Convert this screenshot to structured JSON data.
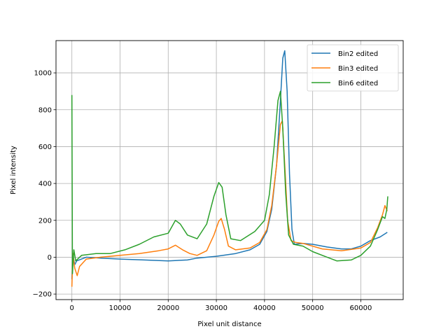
{
  "chart_data": {
    "type": "line",
    "title": "",
    "xlabel": "Pixel unit distance",
    "ylabel": "Pixel intensity",
    "xlim": [
      -3300,
      68800
    ],
    "ylim": [
      -230,
      1175
    ],
    "x_ticks": [
      0,
      10000,
      20000,
      30000,
      40000,
      50000,
      60000
    ],
    "x_tick_labels": [
      "0",
      "10000",
      "20000",
      "30000",
      "40000",
      "50000",
      "60000"
    ],
    "y_ticks": [
      -200,
      0,
      200,
      400,
      600,
      800,
      1000
    ],
    "y_tick_labels": [
      "−200",
      "0",
      "200",
      "400",
      "600",
      "800",
      "1000"
    ],
    "grid": true,
    "legend_position": "top-right",
    "series": [
      {
        "name": "Bin2 edited",
        "color": "#1f77b4",
        "points": [
          [
            0,
            -120
          ],
          [
            200,
            10
          ],
          [
            600,
            -40
          ],
          [
            1000,
            -20
          ],
          [
            3000,
            0
          ],
          [
            6000,
            -5
          ],
          [
            10000,
            -10
          ],
          [
            15000,
            -15
          ],
          [
            20000,
            -20
          ],
          [
            24000,
            -15
          ],
          [
            26000,
            -5
          ],
          [
            30000,
            5
          ],
          [
            34000,
            20
          ],
          [
            37000,
            40
          ],
          [
            39000,
            70
          ],
          [
            40500,
            140
          ],
          [
            41500,
            260
          ],
          [
            42500,
            500
          ],
          [
            43300,
            850
          ],
          [
            43800,
            1080
          ],
          [
            44200,
            1120
          ],
          [
            44700,
            900
          ],
          [
            45200,
            450
          ],
          [
            45700,
            150
          ],
          [
            46200,
            70
          ],
          [
            48000,
            75
          ],
          [
            50000,
            70
          ],
          [
            53000,
            55
          ],
          [
            56000,
            45
          ],
          [
            58000,
            45
          ],
          [
            60000,
            60
          ],
          [
            62000,
            90
          ],
          [
            64000,
            110
          ],
          [
            65500,
            135
          ]
        ]
      },
      {
        "name": "Bin3 edited",
        "color": "#ff7f0e",
        "points": [
          [
            0,
            -160
          ],
          [
            200,
            20
          ],
          [
            600,
            -60
          ],
          [
            1100,
            -100
          ],
          [
            1600,
            -50
          ],
          [
            3000,
            -10
          ],
          [
            6000,
            0
          ],
          [
            10000,
            10
          ],
          [
            14000,
            20
          ],
          [
            18000,
            35
          ],
          [
            20000,
            45
          ],
          [
            21500,
            65
          ],
          [
            23000,
            40
          ],
          [
            24500,
            20
          ],
          [
            26000,
            10
          ],
          [
            28000,
            35
          ],
          [
            29500,
            120
          ],
          [
            30500,
            195
          ],
          [
            31000,
            210
          ],
          [
            31700,
            150
          ],
          [
            32500,
            60
          ],
          [
            34000,
            40
          ],
          [
            37000,
            50
          ],
          [
            39000,
            80
          ],
          [
            40500,
            150
          ],
          [
            41500,
            280
          ],
          [
            42500,
            500
          ],
          [
            43300,
            720
          ],
          [
            43700,
            740
          ],
          [
            44200,
            500
          ],
          [
            44800,
            200
          ],
          [
            45500,
            90
          ],
          [
            46500,
            80
          ],
          [
            48000,
            75
          ],
          [
            52000,
            45
          ],
          [
            56000,
            35
          ],
          [
            60000,
            50
          ],
          [
            62000,
            80
          ],
          [
            63500,
            160
          ],
          [
            64500,
            230
          ],
          [
            65000,
            280
          ],
          [
            65500,
            250
          ]
        ]
      },
      {
        "name": "Bin6 edited",
        "color": "#2ca02c",
        "points": [
          [
            0,
            880
          ],
          [
            120,
            -90
          ],
          [
            400,
            40
          ],
          [
            800,
            -20
          ],
          [
            2000,
            10
          ],
          [
            5000,
            20
          ],
          [
            8000,
            20
          ],
          [
            11000,
            40
          ],
          [
            14000,
            70
          ],
          [
            17000,
            110
          ],
          [
            20000,
            130
          ],
          [
            21500,
            200
          ],
          [
            22500,
            180
          ],
          [
            24000,
            120
          ],
          [
            26000,
            100
          ],
          [
            28000,
            180
          ],
          [
            29500,
            330
          ],
          [
            30500,
            405
          ],
          [
            31200,
            380
          ],
          [
            32000,
            230
          ],
          [
            33000,
            100
          ],
          [
            35000,
            90
          ],
          [
            38000,
            140
          ],
          [
            40000,
            200
          ],
          [
            41000,
            340
          ],
          [
            42000,
            600
          ],
          [
            42800,
            850
          ],
          [
            43300,
            900
          ],
          [
            43800,
            700
          ],
          [
            44400,
            350
          ],
          [
            45000,
            120
          ],
          [
            46000,
            70
          ],
          [
            48000,
            60
          ],
          [
            50000,
            30
          ],
          [
            53000,
            0
          ],
          [
            55000,
            -20
          ],
          [
            58000,
            -15
          ],
          [
            60000,
            10
          ],
          [
            62000,
            60
          ],
          [
            63500,
            150
          ],
          [
            64500,
            220
          ],
          [
            65000,
            210
          ],
          [
            65400,
            260
          ],
          [
            65600,
            330
          ]
        ]
      }
    ]
  }
}
